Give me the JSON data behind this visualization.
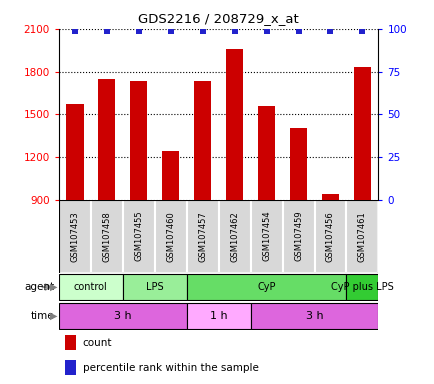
{
  "title": "GDS2216 / 208729_x_at",
  "samples": [
    "GSM107453",
    "GSM107458",
    "GSM107455",
    "GSM107460",
    "GSM107457",
    "GSM107462",
    "GSM107454",
    "GSM107459",
    "GSM107456",
    "GSM107461"
  ],
  "counts": [
    1570,
    1750,
    1730,
    1240,
    1730,
    1960,
    1560,
    1400,
    940,
    1830
  ],
  "percentile_ranks": [
    99,
    99,
    99,
    99,
    99,
    99,
    99,
    99,
    99,
    99
  ],
  "ylim_left": [
    900,
    2100
  ],
  "ylim_right": [
    0,
    100
  ],
  "yticks_left": [
    900,
    1200,
    1500,
    1800,
    2100
  ],
  "yticks_right": [
    0,
    25,
    50,
    75,
    100
  ],
  "bar_color": "#cc0000",
  "dot_color": "#2222cc",
  "agent_groups": [
    {
      "label": "control",
      "start": 0,
      "end": 2,
      "color": "#ccffcc"
    },
    {
      "label": "LPS",
      "start": 2,
      "end": 4,
      "color": "#99ee99"
    },
    {
      "label": "CyP",
      "start": 4,
      "end": 9,
      "color": "#66dd66"
    },
    {
      "label": "CyP plus LPS",
      "start": 9,
      "end": 10,
      "color": "#33cc33"
    }
  ],
  "time_groups": [
    {
      "label": "3 h",
      "start": 0,
      "end": 4,
      "color": "#dd66dd"
    },
    {
      "label": "1 h",
      "start": 4,
      "end": 6,
      "color": "#ffaaff"
    },
    {
      "label": "3 h",
      "start": 6,
      "end": 10,
      "color": "#dd66dd"
    }
  ],
  "fig_width": 4.35,
  "fig_height": 3.84,
  "dpi": 100
}
